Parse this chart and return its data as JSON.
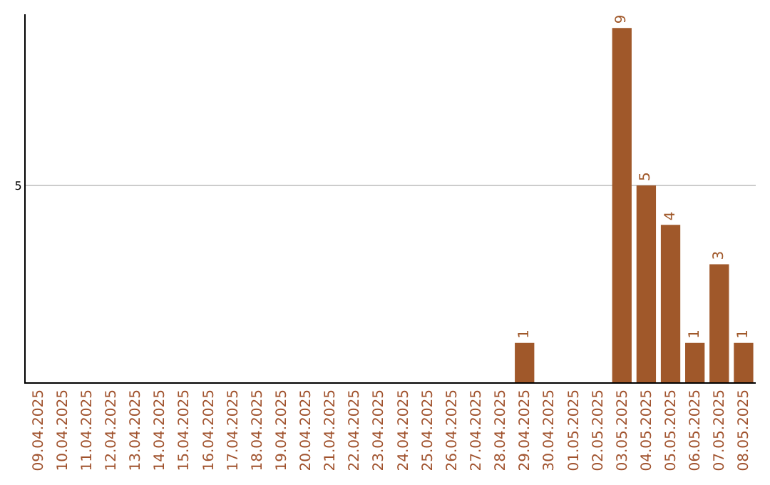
{
  "chart_data": {
    "type": "bar",
    "categories": [
      "09.04.2025",
      "10.04.2025",
      "11.04.2025",
      "12.04.2025",
      "13.04.2025",
      "14.04.2025",
      "15.04.2025",
      "16.04.2025",
      "17.04.2025",
      "18.04.2025",
      "19.04.2025",
      "20.04.2025",
      "21.04.2025",
      "22.04.2025",
      "23.04.2025",
      "24.04.2025",
      "25.04.2025",
      "26.04.2025",
      "27.04.2025",
      "28.04.2025",
      "29.04.2025",
      "30.04.2025",
      "01.05.2025",
      "02.05.2025",
      "03.05.2025",
      "04.05.2025",
      "05.05.2025",
      "06.05.2025",
      "07.05.2025",
      "08.05.2025"
    ],
    "values": [
      null,
      null,
      null,
      null,
      null,
      null,
      null,
      null,
      null,
      null,
      null,
      null,
      null,
      null,
      null,
      null,
      null,
      null,
      null,
      null,
      1,
      null,
      null,
      null,
      9,
      5,
      4,
      1,
      3,
      1
    ],
    "color": "#a0582a",
    "ylim": [
      0,
      9.35
    ],
    "yticks": [
      5
    ],
    "grid": "y",
    "data_labels": true
  }
}
